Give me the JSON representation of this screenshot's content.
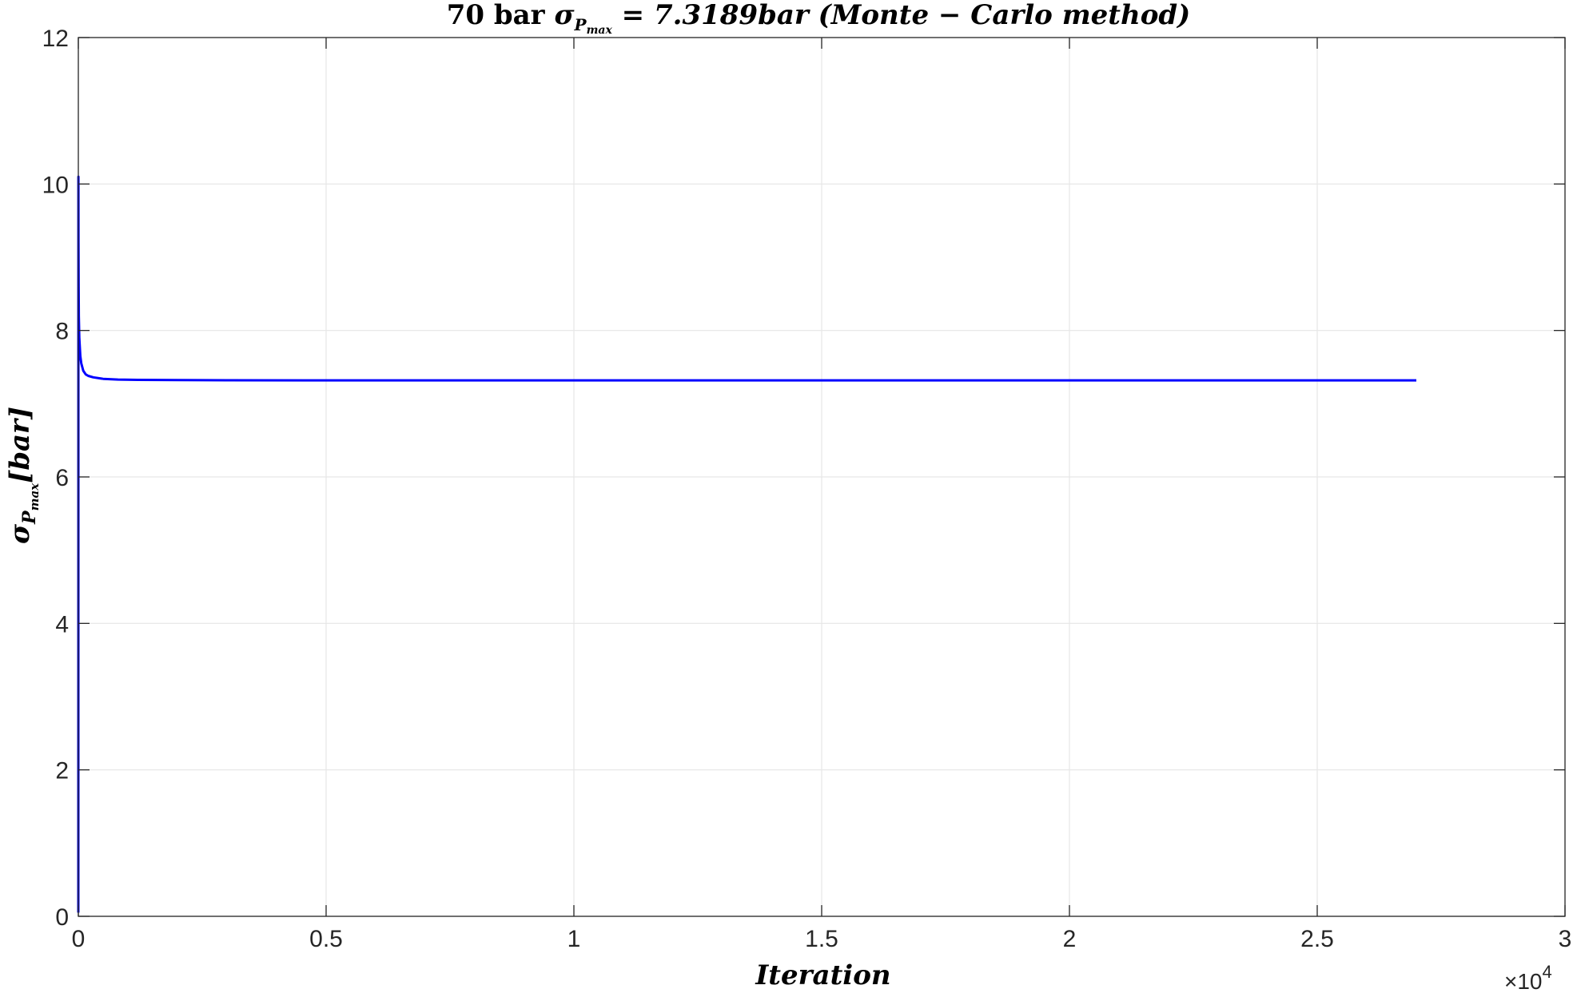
{
  "chart_data": {
    "type": "line",
    "title": {
      "prefix": "70  bar  ",
      "sigma": "σ",
      "sub": "P",
      "subsub": "max",
      "suffix": " = 7.3189bar  (Monte − Carlo  method)"
    },
    "xlabel": "Iteration",
    "ylabel": {
      "sigma": "σ",
      "sub": "P",
      "subsub": "max",
      "unit": "[bar]"
    },
    "x_exponent": {
      "base": "×10",
      "power": "4"
    },
    "xlim": [
      0,
      3
    ],
    "ylim": [
      0,
      12
    ],
    "x_tick_values": [
      0,
      0.5,
      1,
      1.5,
      2,
      2.5,
      3
    ],
    "x_tick_labels": [
      "0",
      "0.5",
      "1",
      "1.5",
      "2",
      "2.5",
      "3"
    ],
    "y_tick_values": [
      0,
      2,
      4,
      6,
      8,
      10,
      12
    ],
    "y_tick_labels": [
      "0",
      "2",
      "4",
      "6",
      "8",
      "10",
      "12"
    ],
    "grid": true,
    "line_color": "#0000ff",
    "series": [
      {
        "x": [
          0,
          0.0001,
          0.0003,
          0.0006,
          0.001,
          0.002,
          0.004,
          0.006,
          0.01,
          0.015,
          0.02,
          0.03,
          0.05,
          0.08,
          0.12,
          0.2,
          0.3,
          0.5,
          1.0,
          1.5,
          2.0,
          2.5,
          2.7
        ],
        "y": [
          0.05,
          10.1,
          9.2,
          8.6,
          8.2,
          7.9,
          7.65,
          7.55,
          7.45,
          7.4,
          7.38,
          7.36,
          7.34,
          7.33,
          7.325,
          7.322,
          7.32,
          7.319,
          7.319,
          7.319,
          7.319,
          7.319,
          7.319
        ]
      }
    ]
  }
}
